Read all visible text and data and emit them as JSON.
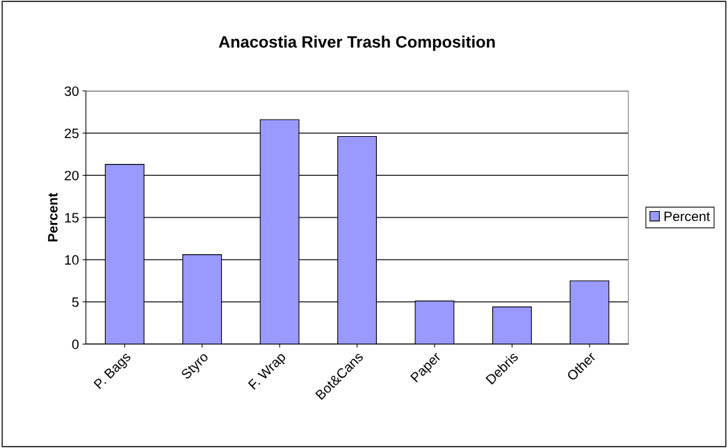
{
  "chart_data": {
    "type": "bar",
    "title": "Anacostia River Trash Composition",
    "ylabel": "Percent",
    "categories": [
      "P. Bags",
      "Styro",
      "F. Wrap",
      "Bot&Cans",
      "Paper",
      "Debris",
      "Other"
    ],
    "series": [
      {
        "name": "Percent",
        "color": "#9999ff",
        "values": [
          21.3,
          10.6,
          26.6,
          24.6,
          5.1,
          4.4,
          7.5
        ]
      }
    ],
    "ylim": [
      0,
      30
    ],
    "yticks": [
      0,
      5,
      10,
      15,
      20,
      25,
      30
    ],
    "grid": "y",
    "legend": "right"
  }
}
